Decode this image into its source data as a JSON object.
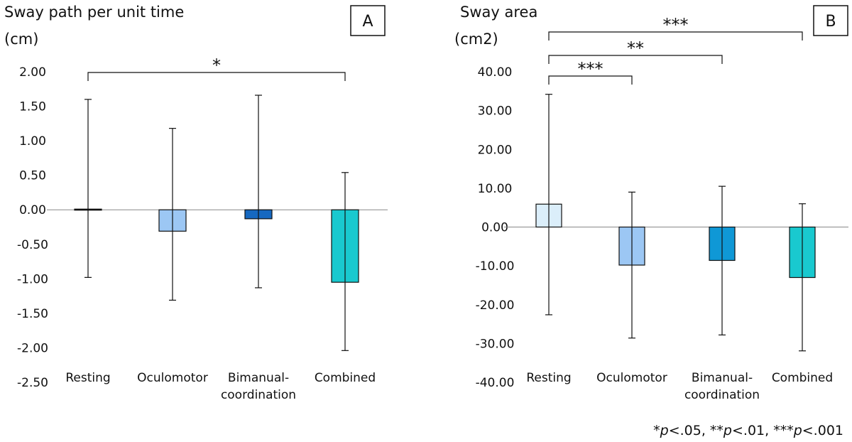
{
  "chart_data": [
    {
      "type": "bar",
      "panel": "A",
      "title": "Sway path per unit time",
      "ylabel": "(cm)",
      "categories": [
        "Resting",
        "Oculomotor",
        "Bimanual-coordination",
        "Combined"
      ],
      "category_lines": [
        [
          "Resting"
        ],
        [
          "Oculomotor"
        ],
        [
          "Bimanual-",
          "coordination"
        ],
        [
          "Combined"
        ]
      ],
      "values": [
        0.01,
        -0.31,
        -0.13,
        -1.05
      ],
      "error_lower": [
        -0.98,
        -1.31,
        -1.13,
        -2.04
      ],
      "error_upper": [
        1.6,
        1.18,
        1.66,
        0.54
      ],
      "colors": [
        "#111111",
        "#9cc7f4",
        "#1668c0",
        "#19c9cf"
      ],
      "ylim": [
        -2.5,
        2.0
      ],
      "yticks": [
        2.0,
        1.5,
        1.0,
        0.5,
        0.0,
        -0.5,
        -1.0,
        -1.5,
        -2.0,
        -2.5
      ],
      "ytick_labels": [
        "2.00",
        "1.50",
        "1.00",
        "0.50",
        "0.00",
        "-0.50",
        "-1.00",
        "-1.50",
        "-2.00",
        "-2.50"
      ],
      "significance": [
        {
          "from": 0,
          "to": 3,
          "label": "*"
        }
      ]
    },
    {
      "type": "bar",
      "panel": "B",
      "title": "Sway area",
      "ylabel": "(cm2)",
      "categories": [
        "Resting",
        "Oculomotor",
        "Bimanual-coordination",
        "Combined"
      ],
      "category_lines": [
        [
          "Resting"
        ],
        [
          "Oculomotor"
        ],
        [
          "Bimanual-",
          "coordination"
        ],
        [
          "Combined"
        ]
      ],
      "values": [
        5.9,
        -9.8,
        -8.6,
        -13.0
      ],
      "error_lower": [
        -22.6,
        -28.6,
        -27.8,
        -31.9
      ],
      "error_upper": [
        34.2,
        9.0,
        10.5,
        6.0
      ],
      "colors": [
        "#dbeefa",
        "#9cc7f4",
        "#0f98d6",
        "#19c9cf"
      ],
      "ylim": [
        -40,
        40
      ],
      "yticks": [
        40,
        30,
        20,
        10,
        0,
        -10,
        -20,
        -30,
        -40
      ],
      "ytick_labels": [
        "40.00",
        "30.00",
        "20.00",
        "10.00",
        "0.00",
        "-10.00",
        "-20.00",
        "-30.00",
        "-40.00"
      ],
      "significance": [
        {
          "from": 0,
          "to": 1,
          "label": "***"
        },
        {
          "from": 0,
          "to": 2,
          "label": "**"
        },
        {
          "from": 0,
          "to": 3,
          "label": "***"
        }
      ]
    }
  ],
  "footnote": {
    "parts": [
      "*",
      "p",
      "<.05, **",
      "p",
      "<.01, ***",
      "p",
      "<.001"
    ]
  }
}
